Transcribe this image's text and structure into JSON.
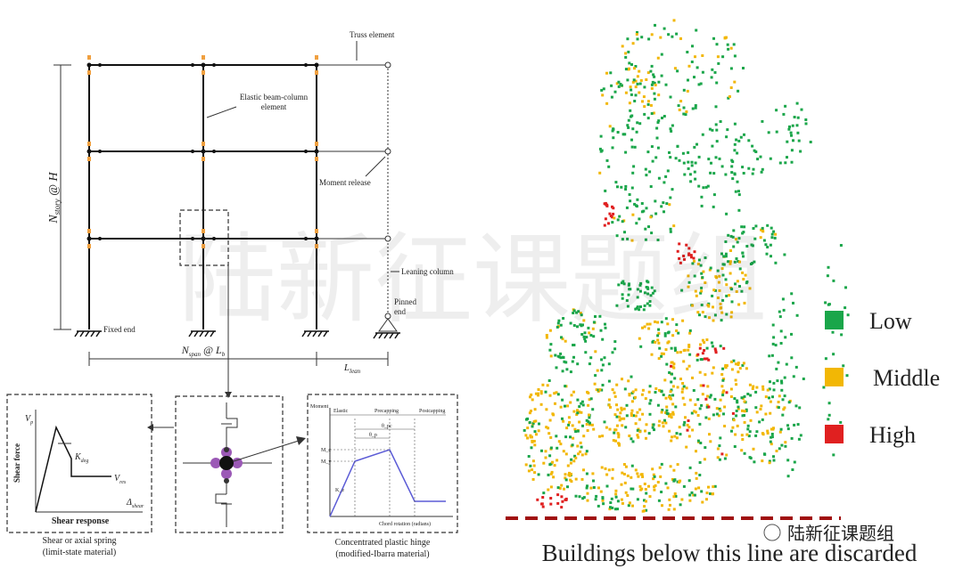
{
  "frame": {
    "truss_element": "Truss element",
    "elastic_element": "Elastic beam-column element",
    "moment_release": "Moment release",
    "leaning_column": "Leaning column",
    "pinned_end": "Pinned end",
    "fixed_end": "Fixed end",
    "story_dim": {
      "main": "N",
      "sub": "story",
      "rest": " @ H"
    },
    "span_dim": {
      "main": "N",
      "sub": "span",
      "rest": " @ L",
      "sub2": "b"
    },
    "lean_dim": {
      "main": "L",
      "sub": "lean"
    }
  },
  "shear_panel": {
    "y_label": "Shear force",
    "vp": "V",
    "vp_sub": "p",
    "kdeg": "K",
    "kdeg_sub": "deg",
    "vres": "V",
    "vres_sub": "res",
    "x_label": "Δ",
    "x_sub": "shear",
    "title": "Shear response",
    "caption": [
      "Shear or axial spring",
      "(limit-state material)"
    ]
  },
  "hinge_panel": {
    "y_label": "Moment",
    "regions": [
      "Elastic",
      "Precapping",
      "Postcapping"
    ],
    "mc": "M_c",
    "my": "M_y",
    "ke": "K_e",
    "theta_p": "θ_p",
    "theta_pc": "θ_pc",
    "x_label": "Chord rotation (radians)",
    "caption": [
      "Concentrated plastic hinge",
      "(modified-Ibarra material)"
    ]
  },
  "map": {
    "legend": [
      {
        "name": "Low",
        "color": "#1aa64a"
      },
      {
        "name": "Middle",
        "color": "#f2b705"
      },
      {
        "name": "High",
        "color": "#e02020"
      }
    ],
    "note": "Buildings below this line are discarded",
    "line_color": "#a01010"
  },
  "watermark": "陆新征课题组",
  "logo": "陆新征课题组"
}
